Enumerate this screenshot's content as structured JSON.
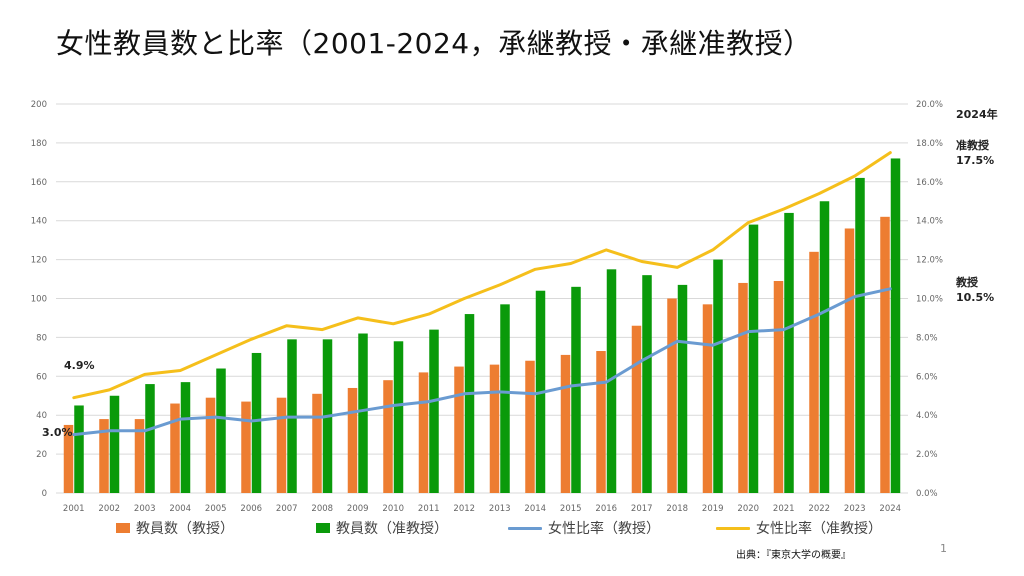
{
  "slide": {
    "title": "女性教員数と比率（2001-2024，承継教授・承継准教授）",
    "source": "出典：『東京大学の概要』",
    "page_number": "1"
  },
  "chart_data": {
    "type": "bar",
    "title": "女性教員数と比率（2001-2024，承継教授・承継准教授）",
    "categories": [
      "2001",
      "2002",
      "2003",
      "2004",
      "2005",
      "2006",
      "2007",
      "2008",
      "2009",
      "2010",
      "2011",
      "2012",
      "2013",
      "2014",
      "2015",
      "2016",
      "2017",
      "2018",
      "2019",
      "2020",
      "2021",
      "2022",
      "2023",
      "2024"
    ],
    "y_left": {
      "min": 0,
      "max": 200,
      "step": 20,
      "ticks": [
        "0",
        "20",
        "40",
        "60",
        "80",
        "100",
        "120",
        "140",
        "160",
        "180",
        "200"
      ]
    },
    "y_right": {
      "min": 0,
      "max": 20,
      "step": 2,
      "ticks": [
        "0.0%",
        "2.0%",
        "4.0%",
        "6.0%",
        "8.0%",
        "10.0%",
        "12.0%",
        "14.0%",
        "16.0%",
        "18.0%",
        "20.0%"
      ]
    },
    "grid": true,
    "legend_position": "bottom",
    "series": [
      {
        "name": "教員数（教授）",
        "type": "bar",
        "axis": "left",
        "color": "#ed7d31",
        "values": [
          35,
          38,
          38,
          46,
          49,
          47,
          49,
          51,
          54,
          58,
          62,
          65,
          66,
          68,
          71,
          73,
          86,
          100,
          97,
          108,
          109,
          124,
          136,
          142
        ]
      },
      {
        "name": "教員数（准教授）",
        "type": "bar",
        "axis": "left",
        "color": "#0a9a0a",
        "values": [
          45,
          50,
          56,
          57,
          64,
          72,
          79,
          79,
          82,
          78,
          84,
          92,
          97,
          104,
          106,
          115,
          112,
          107,
          120,
          138,
          144,
          150,
          162,
          172
        ]
      },
      {
        "name": "女性比率（教授）",
        "type": "line",
        "axis": "right",
        "color": "#6a9bd1",
        "values": [
          3.0,
          3.2,
          3.2,
          3.8,
          3.9,
          3.7,
          3.9,
          3.9,
          4.2,
          4.5,
          4.7,
          5.1,
          5.2,
          5.1,
          5.5,
          5.7,
          6.8,
          7.8,
          7.6,
          8.3,
          8.4,
          9.2,
          10.1,
          10.5
        ]
      },
      {
        "name": "女性比率（准教授）",
        "type": "line",
        "axis": "right",
        "color": "#f5bf1b",
        "values": [
          4.9,
          5.3,
          6.1,
          6.3,
          7.1,
          7.9,
          8.6,
          8.4,
          9.0,
          8.7,
          9.2,
          10.0,
          10.7,
          11.5,
          11.8,
          12.5,
          11.9,
          11.6,
          12.5,
          13.9,
          14.6,
          15.4,
          16.3,
          17.5
        ]
      }
    ],
    "annotations": {
      "start_assoc": "4.9%",
      "start_prof": "3.0%",
      "end_year": "2024年",
      "end_assoc_label": "准教授",
      "end_assoc_value": "17.5%",
      "end_prof_label": "教授",
      "end_prof_value": "10.5%"
    }
  }
}
